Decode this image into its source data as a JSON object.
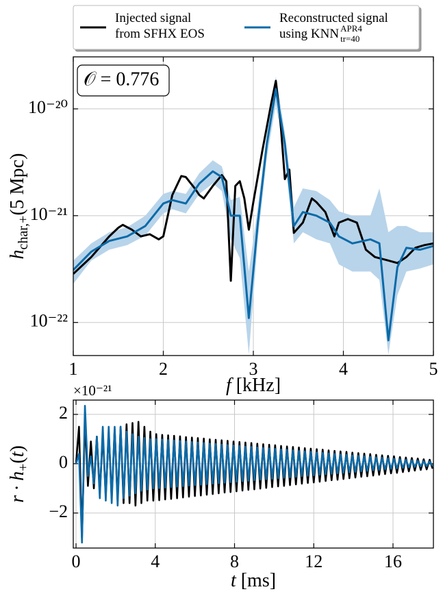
{
  "chart_data": [
    {
      "type": "line",
      "log_y": true,
      "grid": true,
      "legend": "top",
      "annotation": "𝒪 = 0.776",
      "xlabel": [
        {
          "text": "f",
          "style": "italic"
        },
        {
          "text": " [kHz]"
        }
      ],
      "ylabel": [
        {
          "text": "h",
          "style": "italic"
        },
        {
          "text": "char,+",
          "style": "sub"
        },
        {
          "text": "(5 Mpc)"
        }
      ],
      "xlim": [
        1,
        5
      ],
      "xticks": [
        1,
        2,
        3,
        4,
        5
      ],
      "ylim": [
        4.9e-23,
        3.07e-20
      ],
      "yticks": [
        {
          "value": 1e-22,
          "label": "10⁻²²"
        },
        {
          "value": 1e-21,
          "label": "10⁻²¹"
        },
        {
          "value": 1e-20,
          "label": "10⁻²⁰"
        }
      ],
      "series": [
        {
          "name": "Injected signal\nfrom SFHX EOS",
          "color": "#000000",
          "x": [
            1.0,
            1.2,
            1.4,
            1.5,
            1.55,
            1.65,
            1.75,
            1.85,
            1.95,
            2.0,
            2.1,
            2.2,
            2.25,
            2.35,
            2.4,
            2.45,
            2.55,
            2.65,
            2.7,
            2.75,
            2.8,
            2.85,
            2.9,
            2.95,
            3.0,
            3.1,
            3.2,
            3.25,
            3.3,
            3.35,
            3.4,
            3.45,
            3.55,
            3.65,
            3.7,
            3.8,
            3.9,
            3.95,
            4.05,
            4.15,
            4.25,
            4.35,
            4.5,
            4.6,
            4.7,
            4.8,
            4.9,
            5.0
          ],
          "values": [
            2.85e-22,
            4.1e-22,
            6.4e-22,
            7.7e-22,
            8.2e-22,
            7.4e-22,
            6.4e-22,
            6.7e-22,
            6e-22,
            6.4e-22,
            1.56e-21,
            2.35e-21,
            2.3e-21,
            1.8e-21,
            1.56e-21,
            1.45e-21,
            1.9e-21,
            2.4e-21,
            2.1e-21,
            2.46e-22,
            1.9e-21,
            2.1e-21,
            1.45e-21,
            7.4e-22,
            1.34e-21,
            4.06e-21,
            1.14e-20,
            1.83e-20,
            7.9e-21,
            2.2e-21,
            2.7e-21,
            6.9e-22,
            8.6e-22,
            1.45e-21,
            1.34e-21,
            1.08e-21,
            6.4e-22,
            8.6e-22,
            9.3e-22,
            8.6e-22,
            4.8e-22,
            4.1e-22,
            3.8e-22,
            3.6e-22,
            4.1e-22,
            5e-22,
            5.3e-22,
            5.5e-22
          ]
        },
        {
          "name": "Reconstructed signal\nusing KNN",
          "name_sup": "APR4",
          "name_sub": "tr=40",
          "color": "#0a6aa8",
          "band_color": "#b8d4ea",
          "x": [
            1.0,
            1.2,
            1.4,
            1.6,
            1.8,
            2.0,
            2.1,
            2.25,
            2.4,
            2.55,
            2.65,
            2.75,
            2.85,
            2.95,
            3.05,
            3.15,
            3.25,
            3.35,
            3.45,
            3.55,
            3.7,
            3.85,
            3.95,
            4.1,
            4.3,
            4.4,
            4.5,
            4.6,
            4.7,
            4.85,
            5.0
          ],
          "values": [
            3.1e-22,
            4.6e-22,
            5.8e-22,
            6.4e-22,
            8e-22,
            1.3e-21,
            1.4e-21,
            1.3e-21,
            2e-21,
            2.6e-21,
            2.3e-21,
            1e-21,
            1e-21,
            1.1e-22,
            8.6e-22,
            4.7e-21,
            1.53e-20,
            4.7e-21,
            8e-22,
            1.08e-21,
            1e-21,
            8.6e-22,
            6.4e-22,
            5.5e-22,
            6e-22,
            5.5e-22,
            6.8e-23,
            3.3e-22,
            5e-22,
            4.8e-22,
            5.2e-22
          ],
          "lower": [
            2.3e-22,
            3.8e-22,
            4.8e-22,
            5.3e-22,
            6.5e-22,
            1.05e-21,
            1.15e-21,
            1.05e-21,
            1.6e-21,
            2e-21,
            1.7e-21,
            6e-22,
            4e-22,
            5e-23,
            6e-22,
            3.5e-21,
            1.1e-20,
            3.5e-21,
            5.5e-22,
            7e-22,
            6e-22,
            5.5e-22,
            3.5e-22,
            3e-22,
            3e-22,
            2.5e-22,
            5e-23,
            1.8e-22,
            3e-22,
            3.2e-22,
            3.5e-22
          ],
          "upper": [
            3.8e-22,
            5.5e-22,
            7e-22,
            7.8e-22,
            1e-21,
            1.6e-21,
            1.7e-21,
            1.6e-21,
            2.5e-21,
            3.3e-21,
            2.9e-21,
            1.4e-21,
            1.5e-21,
            3e-22,
            1.2e-21,
            6e-21,
            2e-20,
            6e-21,
            1.2e-21,
            1.8e-21,
            1.7e-21,
            1.4e-21,
            1.1e-21,
            1e-21,
            1e-21,
            1.8e-21,
            7e-22,
            8e-22,
            8e-22,
            7e-22,
            7e-22
          ]
        }
      ]
    },
    {
      "type": "line",
      "log_y": false,
      "grid": true,
      "y_offset_label": "×10⁻²¹",
      "xlabel": [
        {
          "text": "t",
          "style": "italic"
        },
        {
          "text": " [ms]"
        }
      ],
      "ylabel": [
        {
          "text": "r · h",
          "style": "italic"
        },
        {
          "text": "+",
          "style": "sub"
        },
        {
          "text": "("
        },
        {
          "text": "t",
          "style": "italic"
        },
        {
          "text": ")"
        }
      ],
      "xlim": [
        -0.14,
        18.04
      ],
      "xticks": [
        0,
        4,
        8,
        12,
        16
      ],
      "ylim": [
        -3.42,
        2.58
      ],
      "yticks": [
        {
          "value": -2,
          "label": "−2"
        },
        0,
        2
      ],
      "x": [
        0,
        0.15,
        0.3,
        0.45,
        0.6,
        0.75,
        0.9,
        1.05,
        1.2,
        1.35,
        1.5,
        1.65,
        1.8,
        1.95,
        2.1,
        2.25,
        2.4,
        2.55,
        2.7,
        2.85,
        3,
        3.15,
        3.3,
        3.45,
        3.6,
        3.75,
        3.9,
        4.05,
        4.2,
        4.35,
        4.5,
        4.65,
        4.8,
        4.95,
        5.1,
        5.25,
        5.4,
        5.55,
        5.7,
        5.85,
        6,
        6.15,
        6.3,
        6.45,
        6.6,
        6.75,
        6.9,
        7.05,
        7.2,
        7.35,
        7.5,
        7.65,
        7.8,
        7.95,
        8.1,
        8.25,
        8.4,
        8.55,
        8.7,
        8.85,
        9,
        9.15,
        9.3,
        9.45,
        9.6,
        9.75,
        9.9,
        10.05,
        10.2,
        10.35,
        10.5,
        10.65,
        10.8,
        10.95,
        11.1,
        11.25,
        11.4,
        11.55,
        11.7,
        11.85,
        12,
        12.15,
        12.3,
        12.45,
        12.6,
        12.75,
        12.9,
        13.05,
        13.2,
        13.35,
        13.5,
        13.65,
        13.8,
        13.95,
        14.1,
        14.25,
        14.4,
        14.55,
        14.7,
        14.85,
        15,
        15.15,
        15.3,
        15.45,
        15.6,
        15.75,
        15.9,
        16.05,
        16.2,
        16.35,
        16.5,
        16.65,
        16.8,
        16.95,
        17.1,
        17.25,
        17.4,
        17.55,
        17.7,
        17.85,
        18
      ],
      "series": [
        {
          "color": "#000000",
          "values": [
            0,
            1.5,
            -3.0,
            1.8,
            -0.9,
            0.9,
            -1.0,
            1.1,
            -1.2,
            1.2,
            -1.3,
            1.3,
            -1.4,
            1.4,
            -1.5,
            1.5,
            -1.6,
            1.6,
            -1.6,
            1.65,
            -1.7,
            1.7,
            -1.6,
            1.5,
            -1.5,
            1.3,
            -1.5,
            1.2,
            -1.48,
            1.17,
            -1.45,
            1.15,
            -1.43,
            1.13,
            -1.4,
            1.11,
            -1.37,
            1.08,
            -1.34,
            1.06,
            -1.31,
            1.04,
            -1.29,
            1.02,
            -1.26,
            0.99,
            -1.23,
            0.97,
            -1.2,
            0.95,
            -1.17,
            0.93,
            -1.15,
            0.9,
            -1.12,
            0.88,
            -1.09,
            0.86,
            -1.06,
            0.84,
            -1.04,
            0.81,
            -1.01,
            0.79,
            -0.98,
            0.77,
            -0.95,
            0.75,
            -0.92,
            0.72,
            -0.9,
            0.7,
            -0.87,
            0.68,
            -0.84,
            0.66,
            -0.81,
            0.63,
            -0.78,
            0.61,
            -0.76,
            0.59,
            -0.73,
            0.57,
            -0.7,
            0.54,
            -0.67,
            0.52,
            -0.65,
            0.5,
            -0.62,
            0.48,
            -0.59,
            0.45,
            -0.56,
            0.43,
            -0.53,
            0.41,
            -0.51,
            0.39,
            -0.48,
            0.36,
            -0.45,
            0.34,
            -0.42,
            0.32,
            -0.39,
            0.3,
            -0.37,
            0.27,
            -0.34,
            0.25,
            -0.31,
            0.23,
            -0.28,
            0.21,
            -0.25,
            0.18,
            -0.23,
            0.16,
            -0.2
          ]
        },
        {
          "color": "#0a6aa8",
          "values": [
            0,
            0.4,
            -3.2,
            2.35,
            -0.5,
            0.3,
            -0.8,
            1.1,
            -1.4,
            1.5,
            -1.5,
            1.5,
            -1.6,
            1.5,
            -1.7,
            1.5,
            -1.4,
            1.3,
            -1.3,
            1.2,
            -1.2,
            1.1,
            -1.1,
            1.05,
            -1.05,
            1.0,
            -1.0,
            1.0,
            -0.99,
            0.98,
            -0.97,
            0.96,
            -0.95,
            0.94,
            -0.93,
            0.92,
            -0.91,
            0.9,
            -0.89,
            0.88,
            -0.87,
            0.86,
            -0.85,
            0.84,
            -0.83,
            0.82,
            -0.81,
            0.8,
            -0.79,
            0.78,
            -0.77,
            0.76,
            -0.75,
            0.74,
            -0.73,
            0.72,
            -0.71,
            0.7,
            -0.69,
            0.68,
            -0.67,
            0.66,
            -0.65,
            0.64,
            -0.63,
            0.62,
            -0.61,
            0.6,
            -0.59,
            0.58,
            -0.57,
            0.56,
            -0.55,
            0.54,
            -0.53,
            0.52,
            -0.51,
            0.5,
            -0.49,
            0.48,
            -0.47,
            0.46,
            -0.45,
            0.44,
            -0.43,
            0.42,
            -0.41,
            0.4,
            -0.39,
            0.38,
            -0.37,
            0.36,
            -0.35,
            0.34,
            -0.33,
            0.32,
            -0.31,
            0.3,
            -0.29,
            0.28,
            -0.27,
            0.26,
            -0.25,
            0.24,
            -0.23,
            0.22,
            -0.21,
            0.2,
            -0.19,
            0.18,
            -0.17,
            0.16,
            -0.15,
            0.14,
            -0.13,
            0.12,
            -0.11,
            0.1,
            -0.1,
            0.09,
            -0.09
          ]
        }
      ]
    }
  ]
}
